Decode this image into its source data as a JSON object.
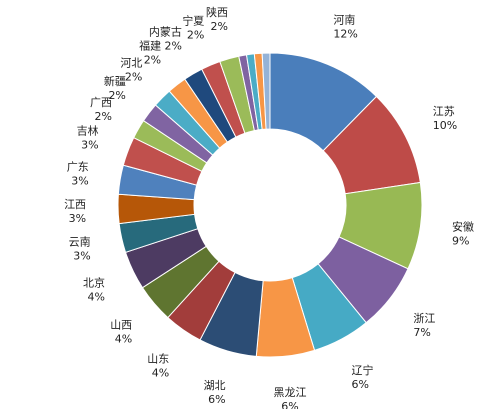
{
  "chart_data": {
    "type": "pie",
    "subtype": "donut",
    "title": "",
    "legend": "none",
    "slices": [
      {
        "label": "河南",
        "value_label": "12%",
        "value": 12,
        "color": "#4a7ebb"
      },
      {
        "label": "江苏",
        "value_label": "10%",
        "value": 10,
        "color": "#be4b48"
      },
      {
        "label": "安徽",
        "value_label": "9%",
        "value": 9,
        "color": "#98b954"
      },
      {
        "label": "浙江",
        "value_label": "7%",
        "value": 7,
        "color": "#7d60a0"
      },
      {
        "label": "辽宁",
        "value_label": "6%",
        "value": 6,
        "color": "#46aac5"
      },
      {
        "label": "黑龙江",
        "value_label": "6%",
        "value": 6,
        "color": "#f79646"
      },
      {
        "label": "湖北",
        "value_label": "6%",
        "value": 6,
        "color": "#2c4d75"
      },
      {
        "label": "山东",
        "value_label": "4%",
        "value": 4,
        "color": "#a23d3b"
      },
      {
        "label": "山西",
        "value_label": "4%",
        "value": 4,
        "color": "#5f7530"
      },
      {
        "label": "北京",
        "value_label": "4%",
        "value": 4,
        "color": "#4d3b62"
      },
      {
        "label": "云南",
        "value_label": "3%",
        "value": 3,
        "color": "#276a7c"
      },
      {
        "label": "江西",
        "value_label": "3%",
        "value": 3,
        "color": "#b65708"
      },
      {
        "label": "广东",
        "value_label": "3%",
        "value": 3,
        "color": "#4f81bd"
      },
      {
        "label": "吉林",
        "value_label": "3%",
        "value": 3,
        "color": "#c0504d"
      },
      {
        "label": "广西",
        "value_label": "2%",
        "value": 2,
        "color": "#9bbb59"
      },
      {
        "label": "新疆",
        "value_label": "2%",
        "value": 2,
        "color": "#8064a2"
      },
      {
        "label": "河北",
        "value_label": "2%",
        "value": 2,
        "color": "#4bacc6"
      },
      {
        "label": "福建",
        "value_label": "2%",
        "value": 2,
        "color": "#f79646"
      },
      {
        "label": "内蒙古",
        "value_label": "2%",
        "value": 2,
        "color": "#1f497d"
      },
      {
        "label": "宁夏",
        "value_label": "2%",
        "value": 2,
        "color": "#c0504d"
      },
      {
        "label": "陕西",
        "value_label": "2%",
        "value": 2,
        "color": "#9bbb59"
      },
      {
        "label": "",
        "value_label": "",
        "value": 0.8,
        "color": "#8064a2"
      },
      {
        "label": "",
        "value_label": "",
        "value": 0.8,
        "color": "#4bacc6"
      },
      {
        "label": "",
        "value_label": "",
        "value": 0.8,
        "color": "#f79646"
      },
      {
        "label": "",
        "value_label": "",
        "value": 0.8,
        "color": "#95b3d7"
      }
    ]
  }
}
